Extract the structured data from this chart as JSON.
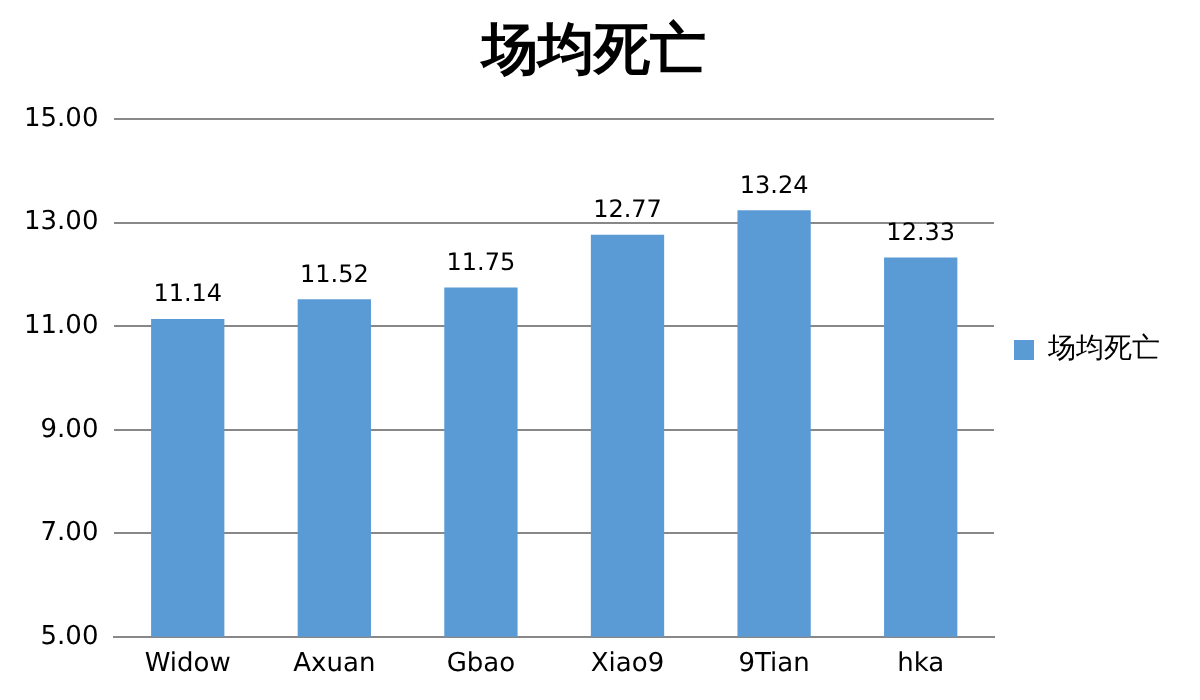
{
  "chart_data": {
    "type": "bar",
    "title": "场均死亡",
    "categories": [
      "Widow",
      "Axuan",
      "Gbao",
      "Xiao9",
      "9Tian",
      "hka"
    ],
    "series": [
      {
        "name": "场均死亡",
        "color": "#5b9bd5",
        "values": [
          11.14,
          11.52,
          11.75,
          12.77,
          13.24,
          12.33
        ]
      }
    ],
    "ylim": [
      5,
      15
    ],
    "yticks": [
      {
        "value": 5,
        "label": "5.00"
      },
      {
        "value": 7,
        "label": "7.00"
      },
      {
        "value": 9,
        "label": "9.00"
      },
      {
        "value": 11,
        "label": "11.00"
      },
      {
        "value": 13,
        "label": "13.00"
      },
      {
        "value": 15,
        "label": "15.00"
      }
    ],
    "grid": "y",
    "legend": "right",
    "data_labels": true
  }
}
